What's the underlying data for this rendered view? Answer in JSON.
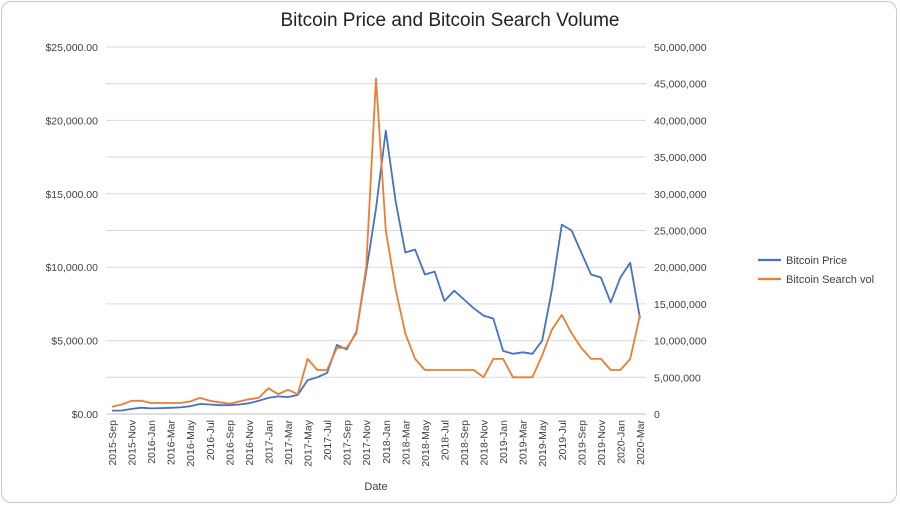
{
  "chart_data": {
    "type": "line",
    "title": "Bitcoin Price and Bitcoin Search Volume",
    "xlabel": "Date",
    "ylabel": "",
    "y2label": "",
    "legend_position": "right",
    "grid": {
      "y": true,
      "x": false
    },
    "categories": [
      "2015-Sep",
      "2015-Oct",
      "2015-Nov",
      "2015-Dec",
      "2016-Jan",
      "2016-Feb",
      "2016-Mar",
      "2016-Apr",
      "2016-May",
      "2016-Jun",
      "2016-Jul",
      "2016-Aug",
      "2016-Sep",
      "2016-Oct",
      "2016-Nov",
      "2016-Dec",
      "2017-Jan",
      "2017-Feb",
      "2017-Mar",
      "2017-Apr",
      "2017-May",
      "2017-Jun",
      "2017-Jul",
      "2017-Aug",
      "2017-Sep",
      "2017-Oct",
      "2017-Nov",
      "2017-Dec",
      "2018-Jan",
      "2018-Feb",
      "2018-Mar",
      "2018-Apr",
      "2018-May",
      "2018-Jun",
      "2018-Jul",
      "2018-Aug",
      "2018-Sep",
      "2018-Oct",
      "2018-Nov",
      "2018-Dec",
      "2019-Jan",
      "2019-Feb",
      "2019-Mar",
      "2019-Apr",
      "2019-May",
      "2019-Jun",
      "2019-Jul",
      "2019-Aug",
      "2019-Sep",
      "2019-Oct",
      "2019-Nov",
      "2019-Dec",
      "2020-Jan",
      "2020-Feb",
      "2020-Mar"
    ],
    "tick_labels": [
      "2015-Sep",
      "2015-Nov",
      "2016-Jan",
      "2016-Mar",
      "2016-May",
      "2016-Jul",
      "2016-Sep",
      "2016-Nov",
      "2017-Jan",
      "2017-Mar",
      "2017-May",
      "2017-Jul",
      "2017-Sep",
      "2017-Nov",
      "2018-Jan",
      "2018-Mar",
      "2018-May",
      "2018-Jul",
      "2018-Sep",
      "2018-Nov",
      "2019-Jan",
      "2019-Mar",
      "2019-May",
      "2019-Jul",
      "2019-Sep",
      "2019-Nov",
      "2020-Jan",
      "2020-Mar"
    ],
    "y_left": {
      "min": 0,
      "max": 25000,
      "step": 5000,
      "tick_labels": [
        "$0.00",
        "$5,000.00",
        "$10,000.00",
        "$15,000.00",
        "$20,000.00",
        "$25,000.00"
      ]
    },
    "y_right": {
      "min": 0,
      "max": 50000000,
      "step": 5000000,
      "tick_labels": [
        "0",
        "5,000,000",
        "10,000,000",
        "15,000,000",
        "20,000,000",
        "25,000,000",
        "30,000,000",
        "35,000,000",
        "40,000,000",
        "45,000,000",
        "50,000,000"
      ]
    },
    "series": [
      {
        "name": "Bitcoin Price",
        "axis": "left",
        "color": "#4472c4",
        "values": [
          230,
          240,
          350,
          430,
          380,
          400,
          420,
          450,
          530,
          680,
          650,
          600,
          600,
          650,
          730,
          900,
          1100,
          1200,
          1150,
          1300,
          2300,
          2500,
          2800,
          4700,
          4400,
          5600,
          9700,
          14000,
          19300,
          14500,
          11000,
          11200,
          9500,
          9700,
          7700,
          8400,
          7800,
          7200,
          6700,
          6500,
          4300,
          4100,
          4200,
          4100,
          5000,
          8500,
          12900,
          12500,
          11000,
          9500,
          9300,
          7600,
          9300,
          10300,
          6500
        ]
      },
      {
        "name": "Bitcoin Search vol",
        "axis": "right",
        "color": "#ed7d31",
        "values": [
          1000000,
          1300000,
          1800000,
          1800000,
          1500000,
          1500000,
          1500000,
          1500000,
          1700000,
          2200000,
          1800000,
          1600000,
          1400000,
          1700000,
          2000000,
          2200000,
          3500000,
          2700000,
          3300000,
          2700000,
          7500000,
          6000000,
          6000000,
          9000000,
          9000000,
          11000000,
          20000000,
          45700000,
          25000000,
          17000000,
          11000000,
          7500000,
          6000000,
          6000000,
          6000000,
          6000000,
          6000000,
          6000000,
          5000000,
          7500000,
          7500000,
          5000000,
          5000000,
          5000000,
          8000000,
          11500000,
          13500000,
          11000000,
          9000000,
          7500000,
          7500000,
          6000000,
          6000000,
          7500000,
          13500000
        ]
      }
    ]
  }
}
